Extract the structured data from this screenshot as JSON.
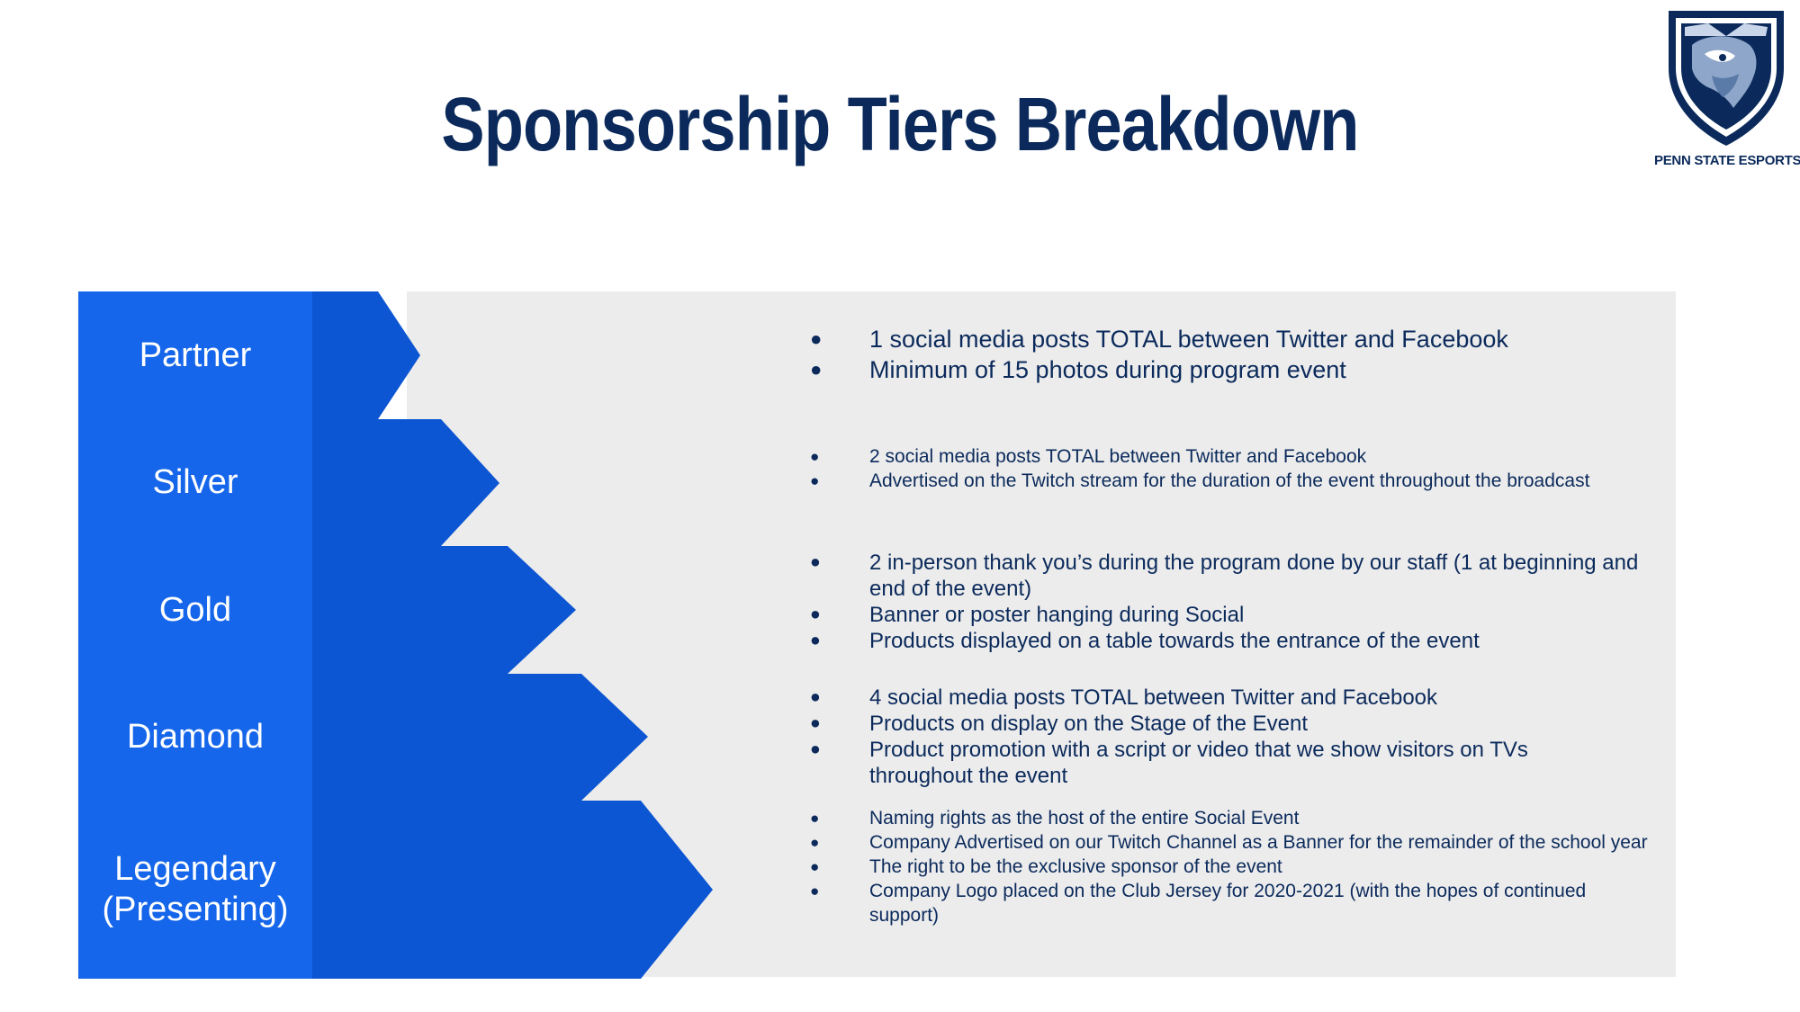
{
  "header": {
    "title": "Sponsorship Tiers Breakdown",
    "logo_text": "PENN STATE ESPORTS"
  },
  "colors": {
    "title": "#0b2a5b",
    "tier_box": "#1566ea",
    "arrow": "#0d56d3",
    "panel": "#ececec",
    "bullet_text": "#0b2a5b"
  },
  "tiers": [
    {
      "label": "Partner",
      "bullets": [
        "1 social media posts TOTAL between Twitter and Facebook",
        "Minimum of 15 photos during program event"
      ]
    },
    {
      "label": "Silver",
      "bullets": [
        "2 social media posts TOTAL between Twitter and Facebook",
        "Advertised on the Twitch stream for the duration of the event throughout the broadcast"
      ]
    },
    {
      "label": "Gold",
      "bullets": [
        "2 in-person thank you’s during the program done by our staff (1 at beginning and end of the event)",
        "Banner or poster hanging during Social",
        "Products displayed on a table towards the entrance of the event"
      ]
    },
    {
      "label": "Diamond",
      "bullets": [
        "4 social media posts TOTAL between Twitter and Facebook",
        "Products on display on the Stage of the Event",
        "Product promotion with a script or video that we show visitors on TVs throughout the event"
      ]
    },
    {
      "label": "Legendary (Presenting)",
      "bullets": [
        "Naming rights as the host of the entire Social Event",
        "Company Advertised on our Twitch Channel as a Banner for the remainder of the school year",
        "The right to be the exclusive sponsor of the event",
        "Company Logo placed on the Club Jersey for 2020-2021 (with the hopes of continued support)"
      ]
    }
  ]
}
